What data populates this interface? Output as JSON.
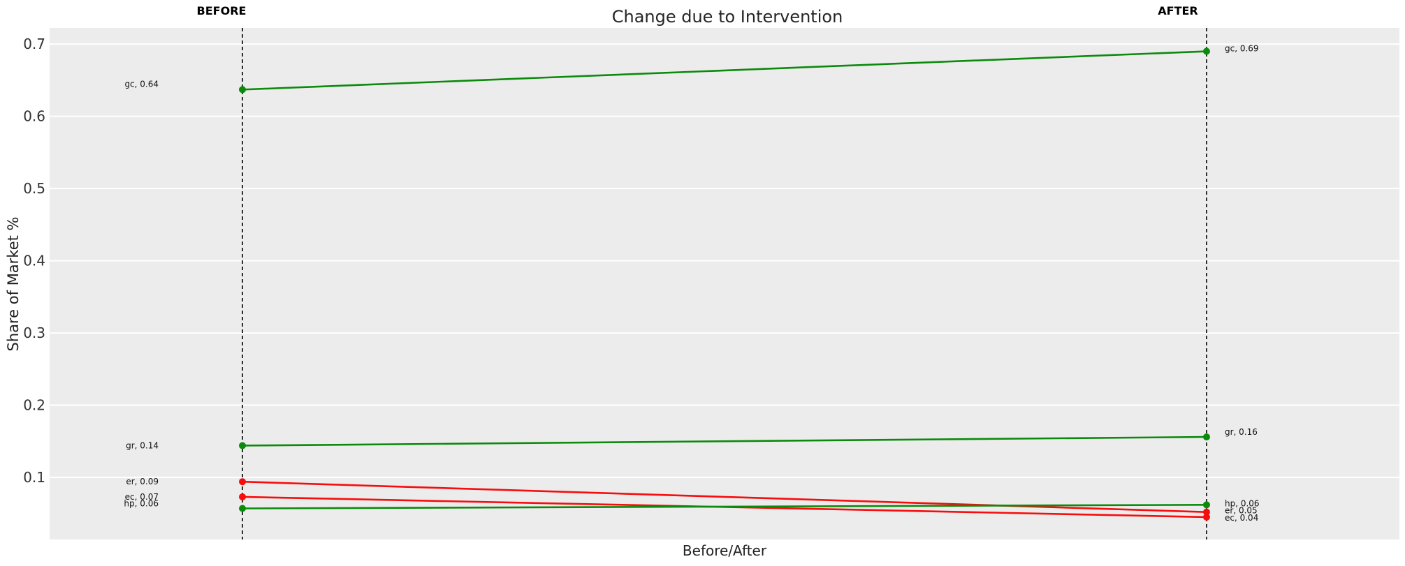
{
  "colors": {
    "increase": "#0b8a0b",
    "decrease": "#f70d0d",
    "plot_bg": "#ececec",
    "gridline": "#ffffff",
    "dashed_line": "#000000",
    "title_text": "#262626",
    "tick_text": "#333333",
    "data_label_text": "#111111"
  },
  "chart_data": {
    "type": "line",
    "subtype": "slope-chart",
    "title": "Change due to Intervention",
    "xlabel": "Before/After",
    "ylabel": "Share of Market %",
    "x_categories": [
      "BEFORE",
      "AFTER"
    ],
    "y_tick_values": [
      0.1,
      0.2,
      0.3,
      0.4,
      0.5,
      0.6,
      0.7
    ],
    "y_tick_labels": [
      "0.1",
      "0.2",
      "0.3",
      "0.4",
      "0.5",
      "0.6",
      "0.7"
    ],
    "ylim": [
      0.014,
      0.7224
    ],
    "grid": "horizontal-only",
    "legend": "none",
    "series": [
      {
        "name": "gc",
        "trend": "increase",
        "values": [
          0.637,
          0.69
        ],
        "point_labels": [
          "gc, 0.64",
          "gc, 0.69"
        ],
        "label_dy": [
          -8,
          -4
        ]
      },
      {
        "name": "gr",
        "trend": "increase",
        "values": [
          0.144,
          0.156
        ],
        "point_labels": [
          "gr, 0.14",
          "gr, 0.16"
        ],
        "label_dy": [
          0,
          -7
        ]
      },
      {
        "name": "er",
        "trend": "decrease",
        "values": [
          0.094,
          0.052
        ],
        "point_labels": [
          "er, 0.09",
          "er, 0.05"
        ],
        "label_dy": [
          0,
          -2
        ]
      },
      {
        "name": "ec",
        "trend": "decrease",
        "values": [
          0.073,
          0.045
        ],
        "point_labels": [
          "ec, 0.07",
          "ec, 0.04"
        ],
        "label_dy": [
          0,
          1
        ]
      },
      {
        "name": "hp",
        "trend": "increase",
        "values": [
          0.057,
          0.062
        ],
        "point_labels": [
          "hp, 0.06",
          "hp, 0.06"
        ],
        "label_dy": [
          -7,
          -2
        ]
      }
    ]
  }
}
